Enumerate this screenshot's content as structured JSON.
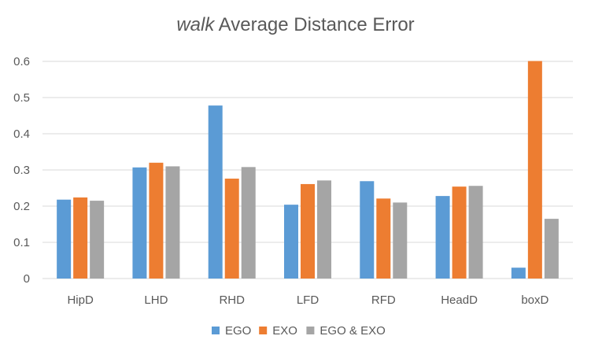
{
  "chart_data": {
    "type": "bar",
    "title_italic": "walk",
    "title_rest": "Average Distance Error",
    "xlabel": "",
    "ylabel": "",
    "categories": [
      "HipD",
      "LHD",
      "RHD",
      "LFD",
      "RFD",
      "HeadD",
      "boxD"
    ],
    "series": [
      {
        "name": "EGO",
        "color": "#5B9BD5",
        "values": [
          0.218,
          0.307,
          0.478,
          0.204,
          0.269,
          0.228,
          0.03
        ]
      },
      {
        "name": "EXO",
        "color": "#ED7D31",
        "values": [
          0.224,
          0.32,
          0.276,
          0.261,
          0.221,
          0.254,
          0.601
        ]
      },
      {
        "name": "EGO & EXO",
        "color": "#A5A5A5",
        "values": [
          0.215,
          0.31,
          0.308,
          0.271,
          0.21,
          0.256,
          0.165
        ]
      }
    ],
    "ylim": [
      0,
      0.6
    ],
    "yticks": [
      "0",
      "0.1",
      "0.2",
      "0.3",
      "0.4",
      "0.5",
      "0.6"
    ],
    "grid": true,
    "legend_position": "bottom"
  }
}
